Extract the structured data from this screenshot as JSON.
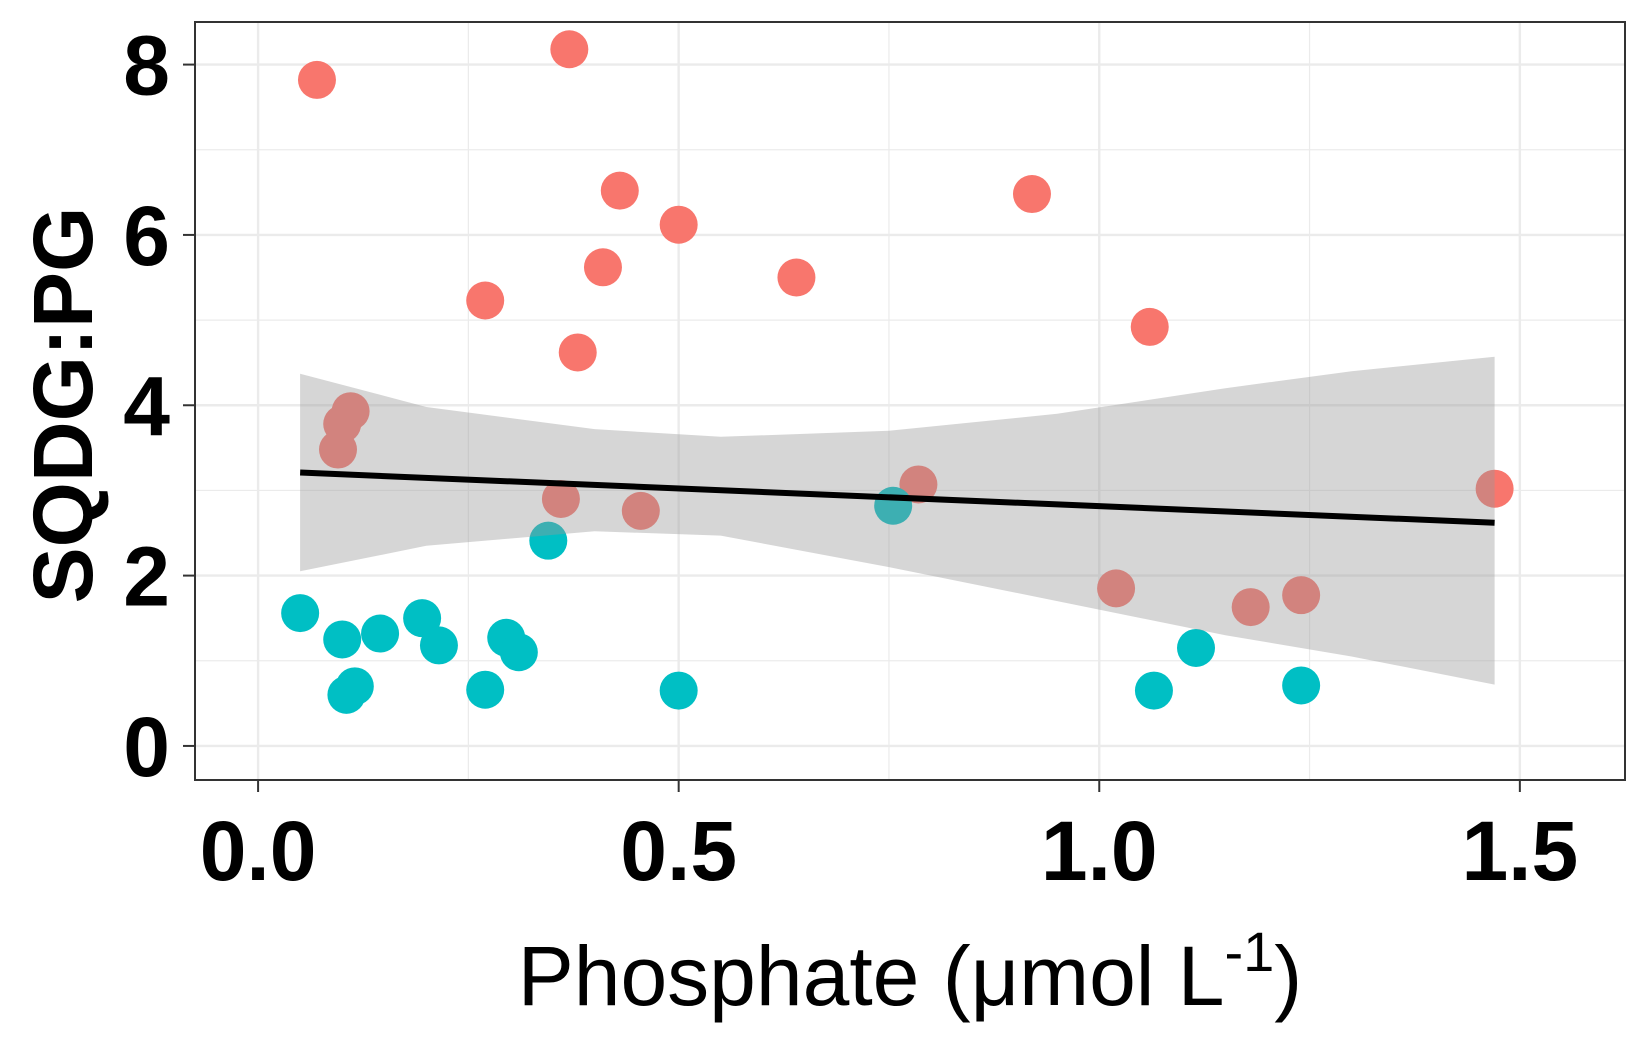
{
  "chart_data": {
    "type": "scatter",
    "xlabel": "Phosphate (μmol L",
    "xlabel_superscript": "-1",
    "xlabel_close": ")",
    "ylabel": "SQDG:PG",
    "xlim": [
      -0.075,
      1.625
    ],
    "ylim": [
      -0.4,
      8.5
    ],
    "x_ticks": [
      0.0,
      0.5,
      1.0,
      1.5
    ],
    "x_tick_labels": [
      "0.0",
      "0.5",
      "1.0",
      "1.5"
    ],
    "y_ticks": [
      0,
      2,
      4,
      6,
      8
    ],
    "y_tick_labels": [
      "0",
      "2",
      "4",
      "6",
      "8"
    ],
    "grid": true,
    "legend": "none",
    "colors": {
      "group_a": "#F8766D",
      "group_b": "#00BFC4",
      "fit_line": "#000000",
      "confidence_band": "#999999",
      "grid": "#EBEBEB",
      "panel_border": "#333333"
    },
    "series": [
      {
        "color": "#F8766D",
        "points": [
          {
            "x": 0.07,
            "y": 7.82
          },
          {
            "x": 0.37,
            "y": 8.18
          },
          {
            "x": 0.43,
            "y": 6.52
          },
          {
            "x": 0.5,
            "y": 6.12
          },
          {
            "x": 0.41,
            "y": 5.62
          },
          {
            "x": 0.27,
            "y": 5.23
          },
          {
            "x": 0.38,
            "y": 4.62
          },
          {
            "x": 0.64,
            "y": 5.5
          },
          {
            "x": 0.92,
            "y": 6.48
          },
          {
            "x": 1.06,
            "y": 4.92
          },
          {
            "x": 0.11,
            "y": 3.93
          },
          {
            "x": 0.1,
            "y": 3.78
          },
          {
            "x": 0.095,
            "y": 3.48
          },
          {
            "x": 0.36,
            "y": 2.9
          },
          {
            "x": 0.455,
            "y": 2.76
          },
          {
            "x": 0.785,
            "y": 3.07
          },
          {
            "x": 1.47,
            "y": 3.02
          },
          {
            "x": 1.02,
            "y": 1.85
          },
          {
            "x": 1.18,
            "y": 1.63
          },
          {
            "x": 1.24,
            "y": 1.77
          }
        ]
      },
      {
        "color": "#00BFC4",
        "points": [
          {
            "x": 0.05,
            "y": 1.56
          },
          {
            "x": 0.1,
            "y": 1.25
          },
          {
            "x": 0.145,
            "y": 1.32
          },
          {
            "x": 0.195,
            "y": 1.5
          },
          {
            "x": 0.215,
            "y": 1.18
          },
          {
            "x": 0.295,
            "y": 1.27
          },
          {
            "x": 0.31,
            "y": 1.1
          },
          {
            "x": 0.345,
            "y": 2.41
          },
          {
            "x": 0.115,
            "y": 0.7
          },
          {
            "x": 0.105,
            "y": 0.6
          },
          {
            "x": 0.27,
            "y": 0.66
          },
          {
            "x": 0.5,
            "y": 0.65
          },
          {
            "x": 0.755,
            "y": 2.82
          },
          {
            "x": 1.065,
            "y": 0.65
          },
          {
            "x": 1.115,
            "y": 1.15
          },
          {
            "x": 1.24,
            "y": 0.71
          }
        ]
      }
    ],
    "fit": {
      "x": [
        0.05,
        1.47
      ],
      "y": [
        3.21,
        2.62
      ]
    },
    "confidence_band": [
      {
        "x": 0.05,
        "lo": 2.05,
        "hi": 4.37
      },
      {
        "x": 0.2,
        "lo": 2.35,
        "hi": 3.98
      },
      {
        "x": 0.4,
        "lo": 2.52,
        "hi": 3.72
      },
      {
        "x": 0.55,
        "lo": 2.47,
        "hi": 3.63
      },
      {
        "x": 0.75,
        "lo": 2.1,
        "hi": 3.7
      },
      {
        "x": 0.95,
        "lo": 1.7,
        "hi": 3.9
      },
      {
        "x": 1.15,
        "lo": 1.3,
        "hi": 4.2
      },
      {
        "x": 1.3,
        "lo": 1.05,
        "hi": 4.4
      },
      {
        "x": 1.47,
        "lo": 0.72,
        "hi": 4.57
      }
    ]
  }
}
